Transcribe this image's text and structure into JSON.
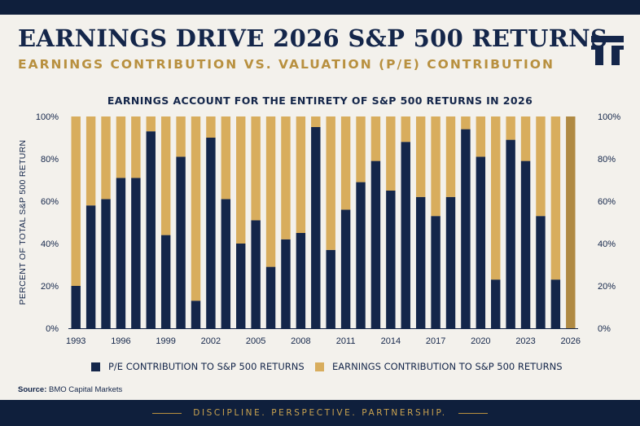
{
  "header": {
    "title": "EARNINGS DRIVE 2026 S&P 500 RETURNS",
    "subtitle": "EARNINGS CONTRIBUTION VS. VALUATION (P/E) CONTRIBUTION"
  },
  "colors": {
    "navy": "#14264a",
    "gold": "#d8ad5d",
    "gold_highlight": "#b08a43",
    "background": "#f3f1ec"
  },
  "logo": {
    "icon": "monogram-logo-icon"
  },
  "chart_data": {
    "type": "bar",
    "stacked": true,
    "title": "EARNINGS ACCOUNT FOR THE ENTIRETY OF S&P 500 RETURNS IN 2026",
    "ylabel": "PERCENT OF TOTAL S&P 500 RETURN",
    "xlabel": "",
    "ylim": [
      0,
      100
    ],
    "y_ticks": [
      "0%",
      "20%",
      "40%",
      "60%",
      "80%",
      "100%"
    ],
    "y_axis_sides": "left-and-right",
    "x_tick_labels": [
      "1993",
      "1996",
      "1999",
      "2002",
      "2005",
      "2008",
      "2011",
      "2014",
      "2017",
      "2020",
      "2023",
      "2026"
    ],
    "categories": [
      1993,
      1994,
      1995,
      1996,
      1997,
      1998,
      1999,
      2000,
      2001,
      2002,
      2003,
      2004,
      2005,
      2006,
      2007,
      2008,
      2009,
      2010,
      2011,
      2012,
      2013,
      2014,
      2015,
      2016,
      2017,
      2018,
      2019,
      2020,
      2021,
      2022,
      2023,
      2024,
      2025,
      2026
    ],
    "series": [
      {
        "name": "P/E CONTRIBUTION TO S&P 500 RETURNS",
        "color": "#14264a",
        "values": [
          20,
          58,
          61,
          71,
          71,
          93,
          44,
          81,
          13,
          90,
          61,
          40,
          51,
          29,
          42,
          45,
          95,
          37,
          56,
          69,
          79,
          65,
          88,
          62,
          53,
          62,
          94,
          81,
          23,
          89,
          79,
          53,
          23,
          0
        ]
      },
      {
        "name": "EARNINGS CONTRIBUTION TO S&P 500 RETURNS",
        "color": "#d8ad5d",
        "values": [
          80,
          42,
          39,
          29,
          29,
          7,
          56,
          19,
          87,
          10,
          39,
          60,
          49,
          71,
          58,
          55,
          5,
          63,
          44,
          31,
          21,
          35,
          12,
          38,
          47,
          38,
          6,
          19,
          77,
          11,
          21,
          47,
          77,
          100
        ]
      }
    ],
    "highlight_category": 2026,
    "legend_position": "bottom",
    "grid": false
  },
  "source": {
    "label": "Source:",
    "text": "BMO Capital Markets"
  },
  "footer": {
    "tagline": "DISCIPLINE.  PERSPECTIVE.  PARTNERSHIP."
  }
}
